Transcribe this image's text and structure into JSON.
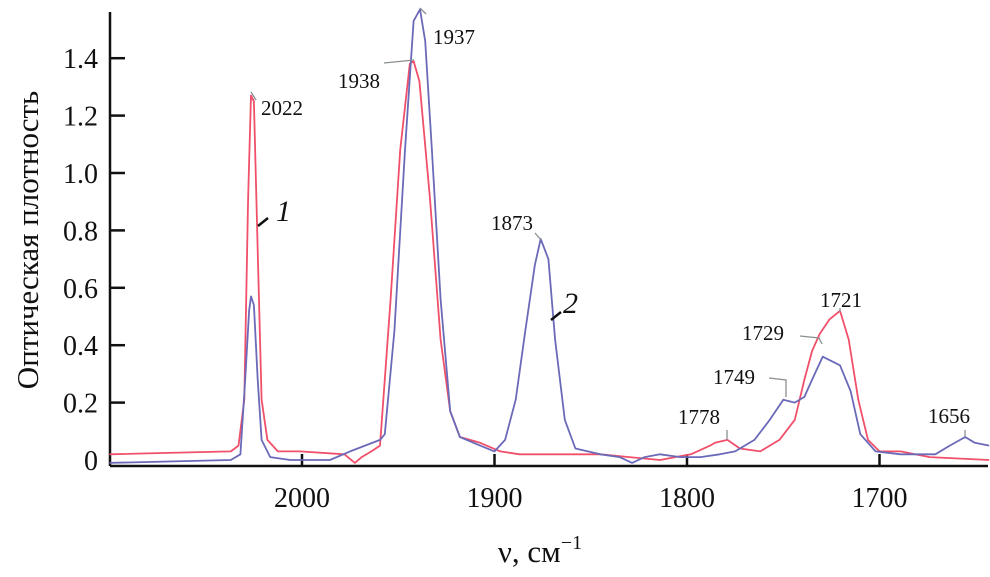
{
  "chart_data": {
    "type": "line",
    "title": "",
    "xlabel": "ν, см",
    "xlabel_superscript": "−1",
    "ylabel": "Оптическая плотность",
    "xlim": [
      2100,
      1643
    ],
    "ylim": [
      0,
      1.57
    ],
    "x_reversed": true,
    "grid": false,
    "x_ticks": [
      2000,
      1900,
      1800,
      1700
    ],
    "x_tick_labels": [
      "2000",
      "1900",
      "1800",
      "1700"
    ],
    "y_ticks": [
      0,
      0.2,
      0.4,
      0.6,
      0.8,
      1.0,
      1.2,
      1.4
    ],
    "y_tick_labels": [
      "0",
      "0.2",
      "0.4",
      "0.6",
      "0.8",
      "1.0",
      "1.2",
      "1.4"
    ],
    "series": [
      {
        "label": "1",
        "color": "#f0506a",
        "x": [
          2100,
          2037,
          2033,
          2030,
          2028,
          2026.5,
          2025,
          2023,
          2021,
          2018,
          2012.5,
          2001,
          1978,
          1972.5,
          1969,
          1964,
          1959.5,
          1954,
          1949,
          1944,
          1942,
          1939,
          1933.5,
          1928,
          1923,
          1918,
          1907.5,
          1897,
          1887,
          1845,
          1830,
          1814,
          1798,
          1788,
          1785.5,
          1779,
          1772.5,
          1762,
          1752,
          1744,
          1739,
          1735,
          1731,
          1726,
          1720.5,
          1716,
          1711,
          1706,
          1700,
          1689,
          1674,
          1643
        ],
        "y": [
          0.02,
          0.03,
          0.05,
          0.21,
          0.91,
          1.27,
          1.25,
          0.73,
          0.21,
          0.07,
          0.03,
          0.03,
          0.02,
          -0.01,
          0.01,
          0.03,
          0.05,
          0.56,
          1.08,
          1.38,
          1.39,
          1.32,
          0.91,
          0.42,
          0.17,
          0.08,
          0.06,
          0.03,
          0.02,
          0.02,
          0.01,
          0.0,
          0.02,
          0.05,
          0.06,
          0.07,
          0.04,
          0.03,
          0.07,
          0.14,
          0.28,
          0.38,
          0.44,
          0.49,
          0.52,
          0.42,
          0.21,
          0.07,
          0.03,
          0.03,
          0.01,
          0.0
        ]
      },
      {
        "label": "2",
        "color": "#6a6ab8",
        "x": [
          2100,
          2037,
          2032,
          2029.5,
          2027.5,
          2026.5,
          2025,
          2023,
          2021,
          2016.5,
          2006,
          1985.5,
          1975,
          1959.5,
          1957,
          1952,
          1946.5,
          1942,
          1938.7,
          1936,
          1932.5,
          1928,
          1923,
          1918,
          1907.5,
          1900,
          1894.5,
          1889,
          1884,
          1879,
          1876,
          1872,
          1868.5,
          1863.5,
          1858,
          1845,
          1835,
          1828.5,
          1822,
          1814,
          1803.5,
          1793,
          1783,
          1775,
          1765,
          1757,
          1750,
          1744,
          1739,
          1735,
          1729.5,
          1720.5,
          1715,
          1710,
          1702,
          1689,
          1671,
          1663.5,
          1655.5,
          1650.5,
          1643
        ],
        "y": [
          -0.01,
          0.0,
          0.02,
          0.28,
          0.52,
          0.57,
          0.54,
          0.28,
          0.07,
          0.01,
          0.0,
          0.0,
          0.03,
          0.07,
          0.09,
          0.45,
          1.08,
          1.53,
          1.57,
          1.46,
          1.08,
          0.56,
          0.17,
          0.08,
          0.05,
          0.03,
          0.07,
          0.21,
          0.45,
          0.68,
          0.77,
          0.7,
          0.42,
          0.14,
          0.04,
          0.02,
          0.01,
          -0.01,
          0.01,
          0.02,
          0.01,
          0.01,
          0.02,
          0.03,
          0.07,
          0.14,
          0.21,
          0.2,
          0.22,
          0.28,
          0.36,
          0.33,
          0.24,
          0.09,
          0.03,
          0.02,
          0.02,
          0.05,
          0.08,
          0.06,
          0.05
        ]
      }
    ],
    "annotations": [
      {
        "text": "2022",
        "series": "1"
      },
      {
        "text": "1938",
        "series": "1"
      },
      {
        "text": "1937",
        "series": "2"
      },
      {
        "text": "1873",
        "series": "2"
      },
      {
        "text": "1778",
        "series": "1"
      },
      {
        "text": "1749",
        "series": "2"
      },
      {
        "text": "1729",
        "series": "1"
      },
      {
        "text": "1721",
        "series": "1"
      },
      {
        "text": "1656",
        "series": "2"
      }
    ]
  }
}
